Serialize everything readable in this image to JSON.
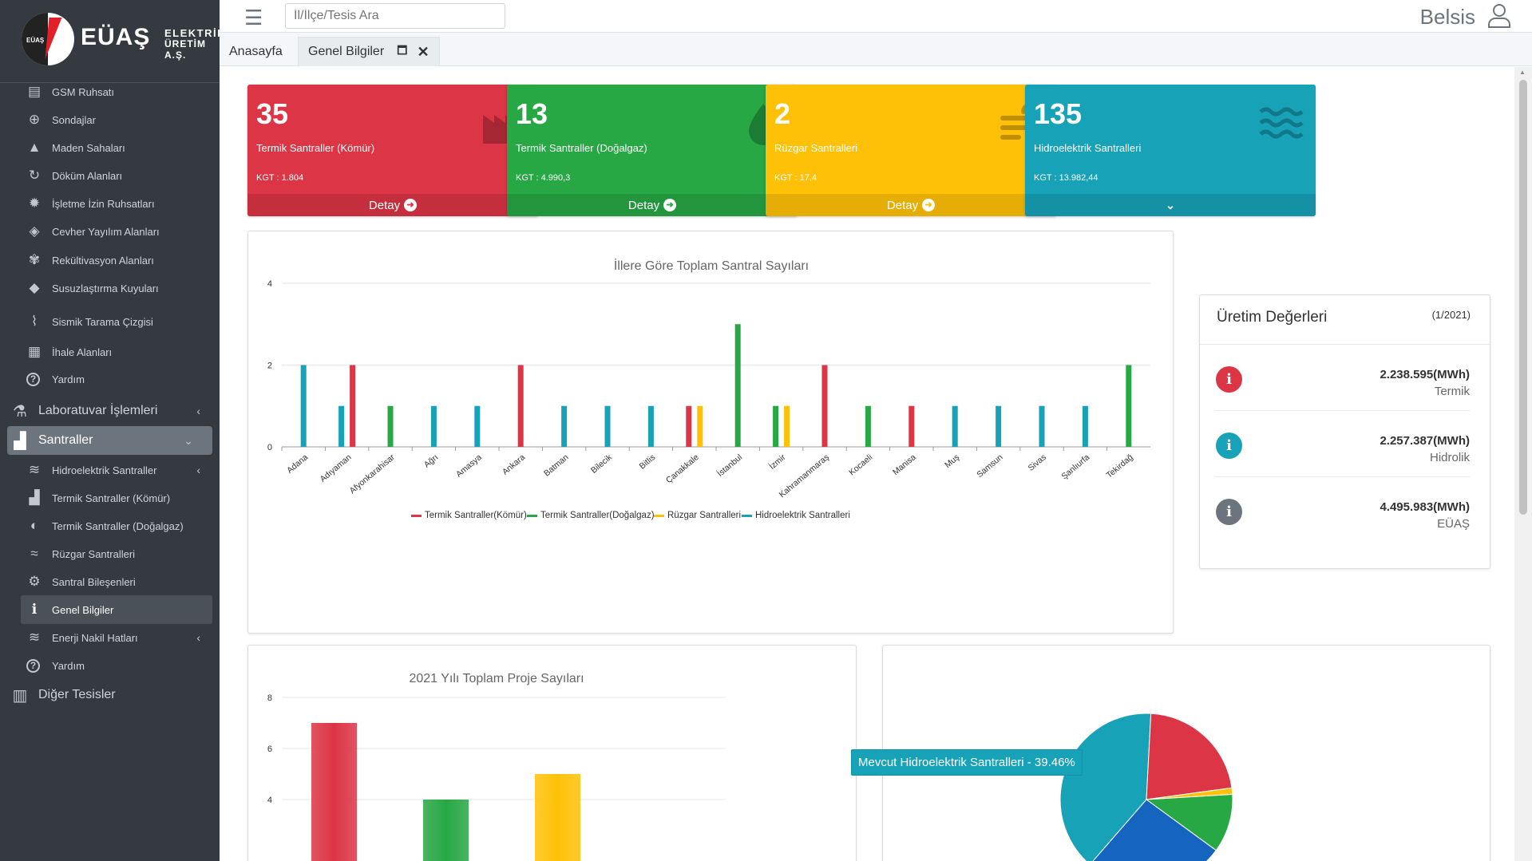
{
  "brand": {
    "logo_mini": "EÜAŞ",
    "name": "EÜAŞ",
    "line1": "ELEKTRİK",
    "line2": "ÜRETİM A.Ş."
  },
  "header": {
    "search_placeholder": "İl/İlçe/Tesis Ara",
    "user": "Belsis"
  },
  "tabs": [
    {
      "label": "Anasayfa"
    },
    {
      "label": "Genel Bilgiler"
    }
  ],
  "sidebar": {
    "items": [
      {
        "label": "GSM Ruhsatı",
        "icon": "document-icon"
      },
      {
        "label": "Sondajlar",
        "icon": "crosshair-icon"
      },
      {
        "label": "Maden Sahaları",
        "icon": "mountain-icon"
      },
      {
        "label": "Döküm Alanları",
        "icon": "recycle-icon"
      },
      {
        "label": "İşletme İzin Ruhsatları",
        "icon": "gear-icon"
      },
      {
        "label": "Cevher Yayılım Alanları",
        "icon": "gem-icon"
      },
      {
        "label": "Rekültivasyon Alanları",
        "icon": "seedling-icon"
      },
      {
        "label": "Susuzlaştırma Kuyuları",
        "icon": "fill-drip-icon"
      },
      {
        "label": "Sismik Tarama Çizgisi",
        "icon": "wave-icon"
      },
      {
        "label": "İhale Alanları",
        "icon": "file-invoice-icon"
      },
      {
        "label": "Yardım",
        "icon": "question-icon"
      }
    ],
    "lab": {
      "label": "Laboratuvar İşlemleri"
    },
    "santraller": {
      "label": "Santraller"
    },
    "sub": [
      {
        "label": "Hidroelektrik Santraller"
      },
      {
        "label": "Termik Santraller (Kömür)"
      },
      {
        "label": "Termik Santraller (Doğalgaz)"
      },
      {
        "label": "Rüzgar Santralleri"
      },
      {
        "label": "Santral Bileşenleri"
      },
      {
        "label": "Genel Bilgiler"
      },
      {
        "label": "Enerji Nakil Hatları"
      },
      {
        "label": "Yardım"
      }
    ],
    "diger": {
      "label": "Diğer Tesisler"
    }
  },
  "boxes": [
    {
      "count": "35",
      "title": "Termik Santraller (Kömür)",
      "kgt": "KGT : 1.804",
      "footer": "Detay",
      "color": "#dc3545",
      "icon": "industry-icon"
    },
    {
      "count": "13",
      "title": "Termik Santraller (Doğalgaz)",
      "kgt": "KGT : 4.990,3",
      "footer": "Detay",
      "color": "#28a745",
      "icon": "drop-icon"
    },
    {
      "count": "2",
      "title": "Rüzgar Santralleri",
      "kgt": "KGT : 17,4",
      "footer": "Detay",
      "color": "#ffc107",
      "icon": "wind-icon"
    },
    {
      "count": "135",
      "title": "Hidroelektrik Santralleri",
      "kgt": "KGT : 13.982,44",
      "footer": "",
      "color": "#17a2b8",
      "icon": "water-icon"
    }
  ],
  "uretim": {
    "title": "Üretim Değerleri",
    "date": "(1/2021)",
    "rows": [
      {
        "value": "2.238.595(MWh)",
        "label": "Termik",
        "color": "#dc3545"
      },
      {
        "value": "2.257.387(MWh)",
        "label": "Hidrolik",
        "color": "#17a2b8"
      },
      {
        "value": "4.495.983(MWh)",
        "label": "EÜAŞ",
        "color": "#6c757d"
      }
    ]
  },
  "tooltip": "Mevcut Hidroelektrik Santralleri - 39.46%",
  "chart_data": [
    {
      "type": "bar",
      "title": "İllere Göre Toplam Santral Sayıları",
      "categories": [
        "Adana",
        "Adıyaman",
        "Afyonkarahisar",
        "Ağrı",
        "Amasya",
        "Ankara",
        "Batman",
        "Bilecik",
        "Bitlis",
        "Çanakkale",
        "İstanbul",
        "İzmir",
        "Kahramanmaraş",
        "Kocaeli",
        "Manisa",
        "Muş",
        "Samsun",
        "Sivas",
        "Şanlıurfa",
        "Tekirdağ"
      ],
      "series": [
        {
          "name": "Termik Santraller(Kömür)",
          "color": "#dc3545",
          "values": [
            0,
            2,
            0,
            0,
            0,
            2,
            0,
            0,
            0,
            1,
            0,
            0,
            2,
            0,
            1,
            0,
            0,
            0,
            0,
            0
          ]
        },
        {
          "name": "Termik Santraller(Doğalgaz)",
          "color": "#28a745",
          "values": [
            0,
            0,
            1,
            0,
            0,
            0,
            0,
            0,
            0,
            0,
            3,
            1,
            0,
            1,
            0,
            0,
            0,
            0,
            0,
            2
          ]
        },
        {
          "name": "Rüzgar Santralleri",
          "color": "#ffc107",
          "values": [
            0,
            0,
            0,
            0,
            0,
            0,
            0,
            0,
            0,
            1,
            0,
            1,
            0,
            0,
            0,
            0,
            0,
            0,
            0,
            0
          ]
        },
        {
          "name": "Hidroelektrik Santralleri",
          "color": "#17a2b8",
          "values": [
            2,
            1,
            0,
            1,
            1,
            0,
            1,
            1,
            1,
            0,
            0,
            0,
            0,
            0,
            0,
            1,
            1,
            1,
            1,
            0
          ]
        }
      ],
      "yticks": [
        0,
        2,
        4
      ],
      "ylim": [
        0,
        4
      ],
      "grid": true,
      "legend": "bottom"
    },
    {
      "type": "bar",
      "title": "2021 Yılı Toplam Proje Sayıları",
      "values": [
        7,
        4,
        5
      ],
      "colors": [
        "#dc3545",
        "#28a745",
        "#ffc107"
      ],
      "yticks": [
        4,
        6,
        8
      ],
      "ylim": [
        0,
        8
      ],
      "grid": true
    },
    {
      "type": "pie",
      "slices": [
        {
          "name": "Mevcut Hidroelektrik Santralleri",
          "value": 39.46,
          "color": "#17a2b8"
        },
        {
          "name": "slice-red",
          "value": 22,
          "color": "#dc3545"
        },
        {
          "name": "slice-yellow",
          "value": 1.2,
          "color": "#ffc107"
        },
        {
          "name": "slice-green",
          "value": 11,
          "color": "#28a745"
        },
        {
          "name": "slice-blue",
          "value": 26.34,
          "color": "#1565c0"
        }
      ]
    }
  ]
}
